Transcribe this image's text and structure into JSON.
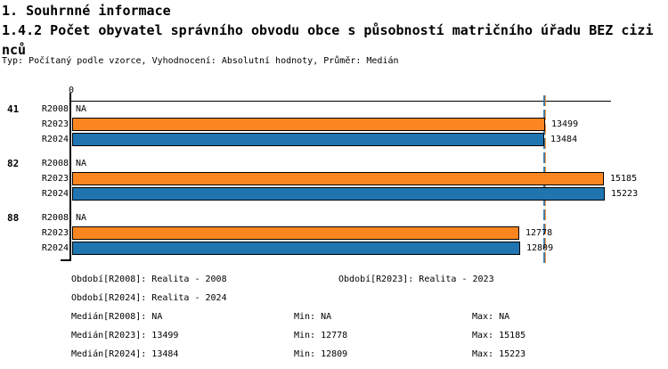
{
  "header": {
    "section_title": "1. Souhrnné informace",
    "indicator_title": "1.4.2 Počet obyvatel správního obvodu obce s působností matričního úřadu BEZ cizinců",
    "meta": "Typ: Počítaný podle vzorce, Vyhodnocení: Absolutní hodnoty, Průměr: Medián"
  },
  "chart_data": {
    "type": "bar",
    "orientation": "horizontal",
    "title": "1.4.2 Počet obyvatel správního obvodu obce s působností matričního úřadu BEZ cizinců",
    "na_label": "NA",
    "x_axis": {
      "min": 0,
      "tick_labels": [
        "0"
      ],
      "grid": false
    },
    "groups": [
      "41",
      "82",
      "88"
    ],
    "series": [
      {
        "name": "R2008",
        "color": null,
        "values": [
          null,
          null,
          null
        ]
      },
      {
        "name": "R2023",
        "color": "#FB8620",
        "values": [
          13499,
          15185,
          12778
        ]
      },
      {
        "name": "R2024",
        "color": "#2074B0",
        "values": [
          13484,
          15223,
          12809
        ]
      }
    ],
    "median_lines": [
      {
        "series": "R2023",
        "value": 13499,
        "color": "#FB8620"
      },
      {
        "series": "R2024",
        "value": 13484,
        "color": "#2074B0"
      }
    ]
  },
  "legend": {
    "periods": [
      "Období[R2008]: Realita - 2008",
      "Období[R2023]: Realita - 2023",
      "Období[R2024]: Realita - 2024"
    ],
    "stats": [
      [
        "Medián[R2008]: NA",
        "Min: NA",
        "Max: NA"
      ],
      [
        "Medián[R2023]: 13499",
        "Min: 12778",
        "Max: 15185"
      ],
      [
        "Medián[R2024]: 13484",
        "Min: 12809",
        "Max: 15223"
      ]
    ]
  }
}
